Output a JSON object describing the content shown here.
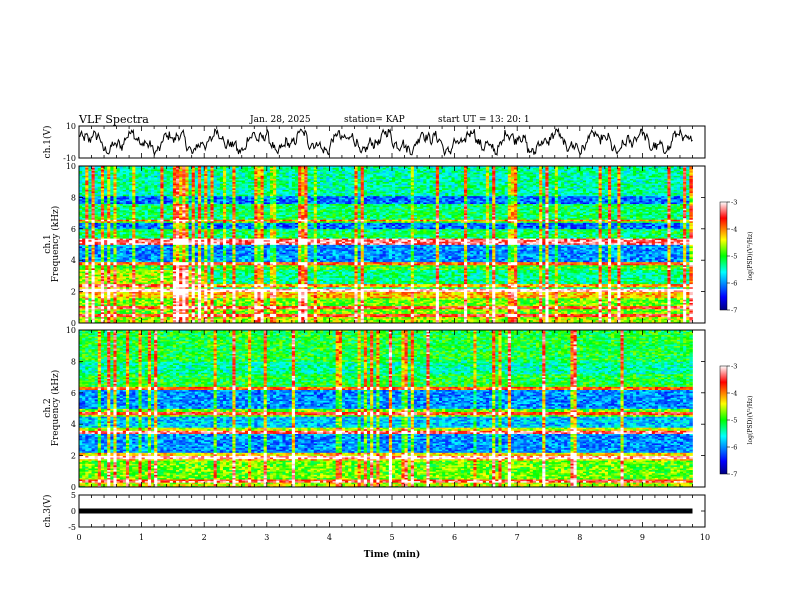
{
  "header": {
    "title": "VLF Spectra",
    "date": "Jan. 28, 2025",
    "station": "station= KAP",
    "start": "start  UT =   13: 20: 1"
  },
  "chart_data": [
    {
      "type": "line",
      "panel": "ch1-waveform",
      "ylabel": "ch.1(V)",
      "ylim": [
        -10,
        10
      ],
      "yticks": [
        "10",
        "-10"
      ],
      "xlim": [
        0,
        10
      ],
      "x_end": 9.8,
      "description_values": "oscillating waveform between about -8 and 8 V",
      "amplitude_range": [
        -8,
        8
      ]
    },
    {
      "type": "heatmap",
      "panel": "ch1-spectrogram",
      "ylabel_line1": "ch.1",
      "ylabel_line2": "Frequency (kHz)",
      "ylim": [
        0,
        10
      ],
      "yticks": [
        "0",
        "2",
        "4",
        "6",
        "8",
        "10"
      ],
      "xlim": [
        0,
        10
      ],
      "x_end": 9.8,
      "colorbar": {
        "label": "log(PSD)(V²/Hz)",
        "range": [
          -7,
          -3
        ],
        "ticks": [
          "-3",
          "-4",
          "-5",
          "-6",
          "-7"
        ]
      },
      "bands": [
        {
          "f": [
            0.0,
            0.4
          ],
          "level": 0.6
        },
        {
          "f": [
            0.4,
            1.6
          ],
          "level": 0.55
        },
        {
          "f": [
            1.6,
            2.2
          ],
          "level": 0.7
        },
        {
          "f": [
            2.2,
            3.4
          ],
          "level": 0.42
        },
        {
          "f": [
            3.4,
            3.9
          ],
          "level": 0.5
        },
        {
          "f": [
            3.9,
            5.0
          ],
          "level": 0.25
        },
        {
          "f": [
            5.0,
            5.4
          ],
          "level": 0.62
        },
        {
          "f": [
            5.4,
            6.0
          ],
          "level": 0.45
        },
        {
          "f": [
            6.0,
            6.5
          ],
          "level": 0.22
        },
        {
          "f": [
            6.5,
            7.6
          ],
          "level": 0.45
        },
        {
          "f": [
            7.6,
            8.1
          ],
          "level": 0.22
        },
        {
          "f": [
            8.1,
            10.0
          ],
          "level": 0.4
        }
      ],
      "lines_khz": [
        0.5,
        1.0,
        2.1,
        2.4,
        3.8,
        5.1,
        5.3,
        6.5
      ]
    },
    {
      "type": "heatmap",
      "panel": "ch2-spectrogram",
      "ylabel_line1": "ch.2",
      "ylabel_line2": "Frequency (kHz)",
      "ylim": [
        0,
        10
      ],
      "yticks": [
        "0",
        "2",
        "4",
        "6",
        "8",
        "10"
      ],
      "xlim": [
        0,
        10
      ],
      "x_end": 9.8,
      "colorbar": {
        "label": "log(PSD)(V²/Hz)",
        "range": [
          -7,
          -3
        ],
        "ticks": [
          "-3",
          "-4",
          "-5",
          "-6",
          "-7"
        ]
      },
      "bands": [
        {
          "f": [
            0.0,
            0.4
          ],
          "level": 0.62
        },
        {
          "f": [
            0.4,
            1.7
          ],
          "level": 0.55
        },
        {
          "f": [
            1.7,
            2.2
          ],
          "level": 0.68
        },
        {
          "f": [
            2.2,
            3.4
          ],
          "level": 0.25
        },
        {
          "f": [
            3.4,
            3.8
          ],
          "level": 0.62
        },
        {
          "f": [
            3.8,
            4.5
          ],
          "level": 0.3
        },
        {
          "f": [
            4.5,
            5.0
          ],
          "level": 0.55
        },
        {
          "f": [
            5.0,
            6.2
          ],
          "level": 0.25
        },
        {
          "f": [
            6.2,
            7.2
          ],
          "level": 0.48
        },
        {
          "f": [
            7.2,
            8.0
          ],
          "level": 0.4
        },
        {
          "f": [
            8.0,
            10.0
          ],
          "level": 0.48
        }
      ],
      "lines_khz": [
        0.4,
        1.9,
        3.5,
        4.7,
        6.3
      ]
    },
    {
      "type": "line",
      "panel": "ch3-waveform",
      "ylabel": "ch.3(V)",
      "ylim": [
        -5,
        5
      ],
      "yticks": [
        "5",
        "0",
        "-5"
      ],
      "xlim": [
        0,
        10
      ],
      "x_end": 9.8,
      "constant_value": 0,
      "xlabel": "Time  (min)",
      "xticks": [
        "0",
        "1",
        "2",
        "3",
        "4",
        "5",
        "6",
        "7",
        "8",
        "9",
        "10"
      ]
    }
  ]
}
